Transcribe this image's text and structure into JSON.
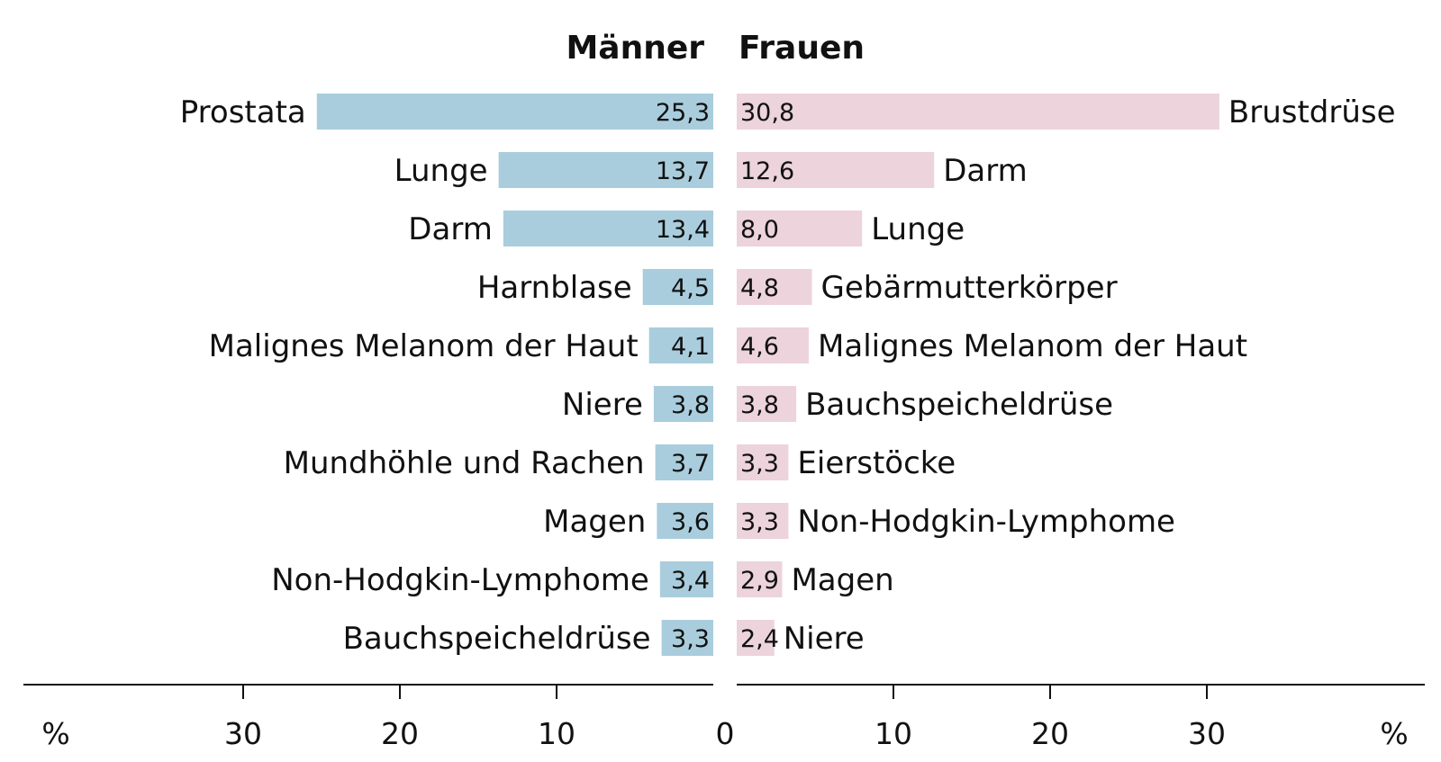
{
  "chart_data": {
    "type": "bar",
    "orientation": "horizontal",
    "layout": "butterfly",
    "headers": {
      "left": "Männer",
      "right": "Frauen"
    },
    "men": {
      "categories": [
        "Prostata",
        "Lunge",
        "Darm",
        "Harnblase",
        "Malignes Melanom der Haut",
        "Niere",
        "Mundhöhle und Rachen",
        "Magen",
        "Non-Hodgkin-Lymphome",
        "Bauchspeicheldrüse"
      ],
      "values": [
        25.3,
        13.7,
        13.4,
        4.5,
        4.1,
        3.8,
        3.7,
        3.6,
        3.4,
        3.3
      ],
      "value_labels": [
        "25,3",
        "13,7",
        "13,4",
        "4,5",
        "4,1",
        "3,8",
        "3,7",
        "3,6",
        "3,4",
        "3,3"
      ],
      "color": "#a9cddd"
    },
    "women": {
      "categories": [
        "Brustdrüse",
        "Darm",
        "Lunge",
        "Gebärmutterkörper",
        "Malignes Melanom der Haut",
        "Bauchspeicheldrüse",
        "Eierstöcke",
        "Non-Hodgkin-Lymphome",
        "Magen",
        "Niere"
      ],
      "values": [
        30.8,
        12.6,
        8.0,
        4.8,
        4.6,
        3.8,
        3.3,
        3.3,
        2.9,
        2.4
      ],
      "value_labels": [
        "30,8",
        "12,6",
        "8,0",
        "4,8",
        "4,6",
        "3,8",
        "3,3",
        "3,3",
        "2,9",
        "2,4"
      ],
      "color": "#ecd3dc"
    },
    "axis": {
      "unit_label": "%",
      "zero_label": "0",
      "ticks": [
        10,
        20,
        30
      ],
      "range": [
        0,
        30.8
      ]
    }
  }
}
